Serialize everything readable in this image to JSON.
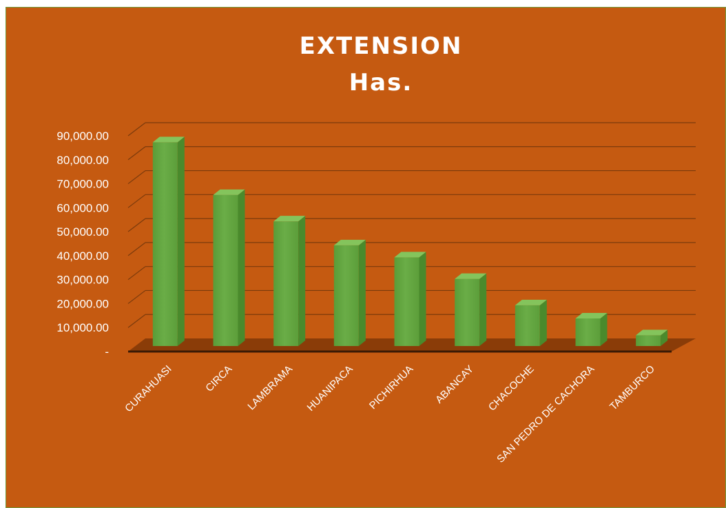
{
  "chart_data": {
    "type": "bar",
    "title": "EXTENSION",
    "subtitle": "Has.",
    "categories": [
      "CURAHUASI",
      "CIRCA",
      "LAMBRAMA",
      "HUANIPACA",
      "PICHIRHUA",
      "ABANCAY",
      "CHACOCHE",
      "SAN PEDRO DE CACHORA",
      "TAMBURCO"
    ],
    "values": [
      85000,
      63000,
      52000,
      42000,
      37000,
      28000,
      17000,
      11500,
      4500
    ],
    "ylim": [
      0,
      90000
    ],
    "yticks": [
      {
        "value": 0,
        "label": "-"
      },
      {
        "value": 10000,
        "label": "10,000.00"
      },
      {
        "value": 20000,
        "label": "20,000.00"
      },
      {
        "value": 30000,
        "label": "30,000.00"
      },
      {
        "value": 40000,
        "label": "40,000.00"
      },
      {
        "value": 50000,
        "label": "50,000.00"
      },
      {
        "value": 60000,
        "label": "60,000.00"
      },
      {
        "value": 70000,
        "label": "70,000.00"
      },
      {
        "value": 80000,
        "label": "80,000.00"
      },
      {
        "value": 90000,
        "label": "90,000.00"
      }
    ],
    "grid": true,
    "legend": "none",
    "colors": {
      "background": "#c55a11",
      "bar_front": "#6aad47",
      "bar_side": "#4a8a2c",
      "bar_top": "#84c45c",
      "grid": "#7a3a0c",
      "floor": "#8a3c08",
      "text": "#ffffff"
    }
  }
}
